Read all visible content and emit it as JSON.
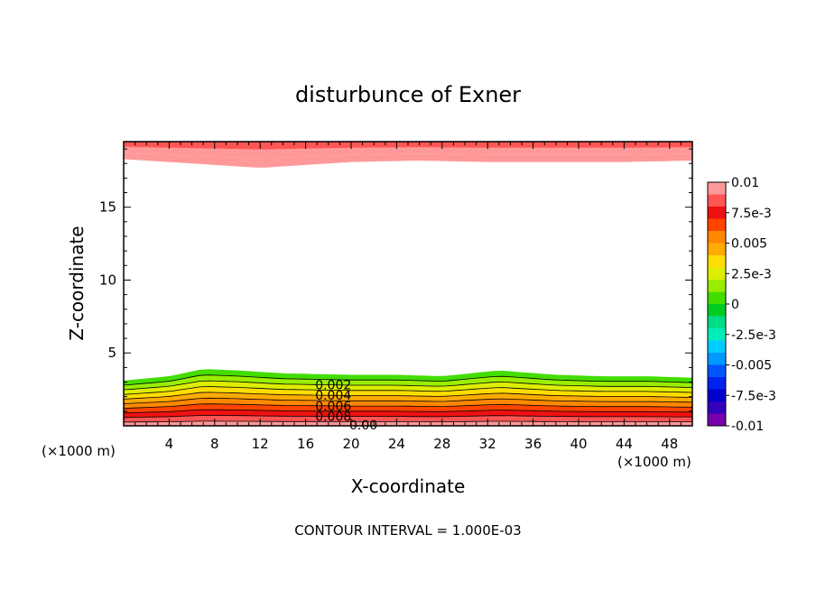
{
  "chart_data": {
    "type": "contour",
    "title": "disturbunce of Exner",
    "xlabel": "X-coordinate",
    "ylabel": "Z-coordinate",
    "x_unit": "(×1000 m)",
    "x_unit_right": "(×1000 m)",
    "footer": "CONTOUR INTERVAL = 1.000E-03",
    "xlim": [
      0,
      50
    ],
    "ylim": [
      0,
      19.5
    ],
    "x_ticks": [
      4,
      8,
      12,
      16,
      20,
      24,
      28,
      32,
      36,
      40,
      44,
      48
    ],
    "y_ticks": [
      5,
      10,
      15
    ],
    "contour_interval": 0.001,
    "contour_labels": [
      "0.008",
      "0.006",
      "0.004",
      "0.002",
      "0.00"
    ],
    "colorbar": {
      "min": -0.01,
      "max": 0.01,
      "tick_labels": [
        "0.01",
        "7.5e-3",
        "0.005",
        "2.5e-3",
        "0",
        "-2.5e-3",
        "-0.005",
        "-7.5e-3",
        "-0.01"
      ],
      "colors": [
        "#ff9999",
        "#ff5555",
        "#ee1111",
        "#ff4400",
        "#ff8800",
        "#ffaa00",
        "#ffdd00",
        "#ddee00",
        "#99ee00",
        "#44dd00",
        "#00cc22",
        "#00dd88",
        "#00eebb",
        "#00ccff",
        "#0099ff",
        "#0055ff",
        "#0022ee",
        "#0000cc",
        "#3300bb",
        "#7700aa"
      ]
    },
    "bottom_layer": {
      "note": "values decrease upward from surface (~0.0095 at bottom) to 0 near z≈3.5",
      "top_boundary_z": [
        [
          0,
          3.1
        ],
        [
          4,
          3.4
        ],
        [
          7,
          3.9
        ],
        [
          10,
          3.8
        ],
        [
          14,
          3.6
        ],
        [
          20,
          3.5
        ],
        [
          24,
          3.5
        ],
        [
          28,
          3.4
        ],
        [
          33,
          3.8
        ],
        [
          38,
          3.5
        ],
        [
          42,
          3.4
        ],
        [
          46,
          3.4
        ],
        [
          50,
          3.3
        ]
      ],
      "contour_levels": [
        0.009,
        0.008,
        0.007,
        0.006,
        0.005,
        0.004,
        0.003,
        0.002,
        0.001
      ]
    },
    "top_layer": {
      "note": "values ~0.01 near the top boundary, band from z≈18 to 19.5",
      "lower_boundary_z": [
        [
          0,
          18.3
        ],
        [
          4,
          18.1
        ],
        [
          8,
          17.9
        ],
        [
          12,
          17.7
        ],
        [
          16,
          17.9
        ],
        [
          20,
          18.1
        ],
        [
          26,
          18.2
        ],
        [
          32,
          18.1
        ],
        [
          38,
          18.1
        ],
        [
          44,
          18.1
        ],
        [
          50,
          18.2
        ]
      ]
    }
  }
}
